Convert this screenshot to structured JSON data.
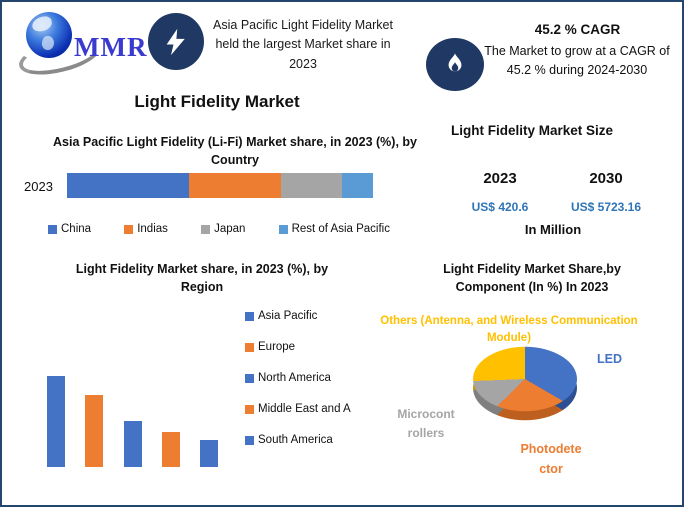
{
  "brand": {
    "logo_text": "MMR"
  },
  "header": {
    "highlight": "Asia Pacific Light Fidelity Market held the largest Market share in 2023",
    "cagr_title": "45.2 % CAGR",
    "cagr_text": "The Market to grow at a CAGR of 45.2 % during 2024-2030"
  },
  "main_title": "Light Fidelity Market",
  "market_size": {
    "title": "Light Fidelity Market Size",
    "columns": [
      {
        "year": "2023",
        "value": "US$ 420.6"
      },
      {
        "year": "2030",
        "value": "US$ 5723.16"
      }
    ],
    "unit": "In Million",
    "value_color": "#2E75B6"
  },
  "colors": {
    "navy": "#1F3864",
    "border": "#24456e"
  },
  "chart_data": [
    {
      "type": "bar",
      "variant": "stacked-horizontal",
      "title": "Asia Pacific Light Fidelity (Li-Fi) Market share, in 2023 (%), by Country",
      "categories": [
        "2023"
      ],
      "series": [
        {
          "name": "China",
          "values": [
            40
          ],
          "color": "#4472C4"
        },
        {
          "name": "Indias",
          "values": [
            30
          ],
          "color": "#ED7D31"
        },
        {
          "name": "Japan",
          "values": [
            20
          ],
          "color": "#A5A5A5"
        },
        {
          "name": "Rest of Asia Pacific",
          "values": [
            10
          ],
          "color": "#5B9BD5"
        }
      ],
      "xlim": [
        0,
        100
      ],
      "axis_labels_shown": false,
      "legend_position": "bottom",
      "values_are_estimates": true
    },
    {
      "type": "bar",
      "variant": "vertical",
      "title": "Light Fidelity Market share, in 2023 (%), by Region",
      "categories": [
        "Asia Pacific",
        "Europe",
        "North America",
        "Middle East and A",
        "South America"
      ],
      "values": [
        34,
        27,
        17,
        13,
        10
      ],
      "colors": [
        "#4472C4",
        "#ED7D31",
        "#4472C4",
        "#ED7D31",
        "#4472C4"
      ],
      "axis_labels_shown": false,
      "legend_position": "right",
      "values_are_estimates": true
    },
    {
      "type": "pie",
      "variant": "3d",
      "title": "Light Fidelity Market Share,by Component (In %) In 2023",
      "labels": [
        "LED",
        "Photodetector",
        "Microcontrollers",
        "Others (Antenna, and Wireless Communication Module)"
      ],
      "values": [
        37,
        22,
        15,
        26
      ],
      "colors": [
        "#4472C4",
        "#ED7D31",
        "#A5A5A5",
        "#FFC000"
      ],
      "side_colors": [
        "#2d4f93",
        "#bc5f1f",
        "#7f7f7f",
        "#c79500"
      ],
      "label_colors": [
        "#4472C4",
        "#ED7D31",
        "#A5A5A5",
        "#FFC000"
      ],
      "start_angle_deg": 0,
      "direction": "clockwise",
      "values_are_estimates": true
    }
  ]
}
